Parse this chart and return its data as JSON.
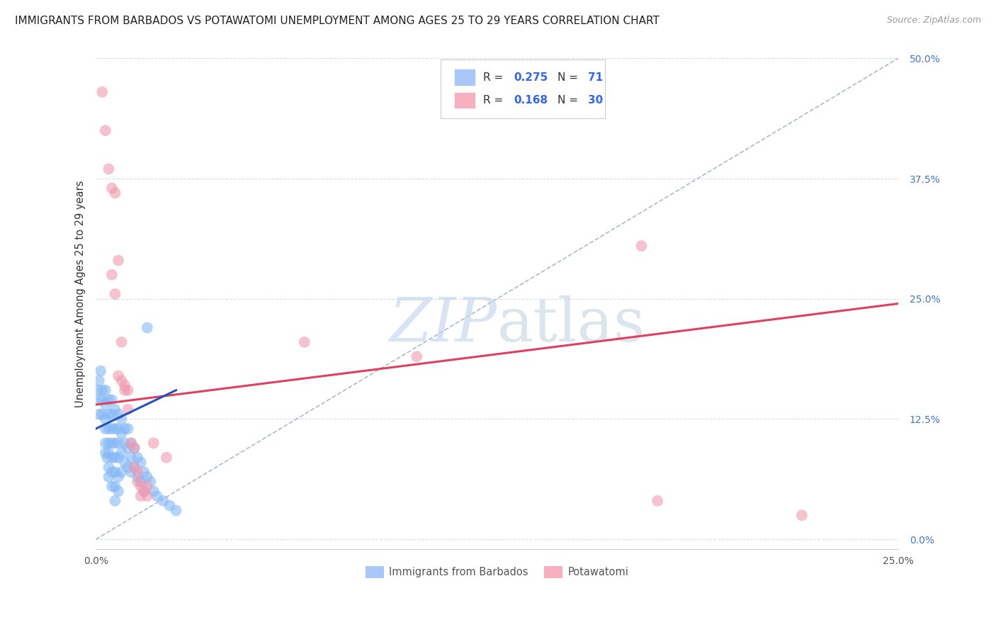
{
  "title": "IMMIGRANTS FROM BARBADOS VS POTAWATOMI UNEMPLOYMENT AMONG AGES 25 TO 29 YEARS CORRELATION CHART",
  "source": "Source: ZipAtlas.com",
  "ylabel": "Unemployment Among Ages 25 to 29 years",
  "ylabel_ticks": [
    "0.0%",
    "12.5%",
    "25.0%",
    "37.5%",
    "50.0%"
  ],
  "ylabel_vals": [
    0.0,
    0.125,
    0.25,
    0.375,
    0.5
  ],
  "xtick_vals": [
    0.0,
    0.05,
    0.1,
    0.15,
    0.2,
    0.25
  ],
  "xtick_labels": [
    "0.0%",
    "",
    "",
    "",
    "",
    "25.0%"
  ],
  "xlim": [
    0.0,
    0.25
  ],
  "ylim": [
    -0.01,
    0.52
  ],
  "blue_color": "#85b8f5",
  "pink_color": "#f09aaf",
  "blue_line_color": "#2255bb",
  "pink_line_color": "#e04060",
  "dash_line_color": "#aabbcc",
  "grid_color": "#d5dde8",
  "bg_color": "#ffffff",
  "title_fontsize": 11,
  "source_fontsize": 9,
  "tick_fontsize": 10,
  "label_fontsize": 10.5,
  "blue_scatter": [
    [
      0.0005,
      0.155
    ],
    [
      0.001,
      0.165
    ],
    [
      0.001,
      0.145
    ],
    [
      0.001,
      0.13
    ],
    [
      0.0015,
      0.175
    ],
    [
      0.002,
      0.155
    ],
    [
      0.002,
      0.145
    ],
    [
      0.002,
      0.13
    ],
    [
      0.003,
      0.155
    ],
    [
      0.003,
      0.14
    ],
    [
      0.003,
      0.125
    ],
    [
      0.003,
      0.115
    ],
    [
      0.003,
      0.1
    ],
    [
      0.003,
      0.09
    ],
    [
      0.0035,
      0.085
    ],
    [
      0.004,
      0.145
    ],
    [
      0.004,
      0.13
    ],
    [
      0.004,
      0.115
    ],
    [
      0.004,
      0.1
    ],
    [
      0.004,
      0.09
    ],
    [
      0.004,
      0.075
    ],
    [
      0.004,
      0.065
    ],
    [
      0.005,
      0.145
    ],
    [
      0.005,
      0.13
    ],
    [
      0.005,
      0.115
    ],
    [
      0.005,
      0.1
    ],
    [
      0.005,
      0.085
    ],
    [
      0.005,
      0.07
    ],
    [
      0.005,
      0.055
    ],
    [
      0.006,
      0.135
    ],
    [
      0.006,
      0.115
    ],
    [
      0.006,
      0.1
    ],
    [
      0.006,
      0.085
    ],
    [
      0.006,
      0.07
    ],
    [
      0.006,
      0.055
    ],
    [
      0.006,
      0.04
    ],
    [
      0.007,
      0.13
    ],
    [
      0.007,
      0.115
    ],
    [
      0.007,
      0.1
    ],
    [
      0.007,
      0.085
    ],
    [
      0.007,
      0.065
    ],
    [
      0.007,
      0.05
    ],
    [
      0.008,
      0.125
    ],
    [
      0.008,
      0.11
    ],
    [
      0.008,
      0.09
    ],
    [
      0.008,
      0.07
    ],
    [
      0.009,
      0.115
    ],
    [
      0.009,
      0.1
    ],
    [
      0.009,
      0.08
    ],
    [
      0.01,
      0.115
    ],
    [
      0.01,
      0.095
    ],
    [
      0.01,
      0.075
    ],
    [
      0.011,
      0.1
    ],
    [
      0.011,
      0.085
    ],
    [
      0.011,
      0.07
    ],
    [
      0.012,
      0.095
    ],
    [
      0.012,
      0.075
    ],
    [
      0.013,
      0.085
    ],
    [
      0.013,
      0.065
    ],
    [
      0.014,
      0.08
    ],
    [
      0.014,
      0.06
    ],
    [
      0.015,
      0.07
    ],
    [
      0.015,
      0.05
    ],
    [
      0.016,
      0.065
    ],
    [
      0.016,
      0.22
    ],
    [
      0.017,
      0.06
    ],
    [
      0.018,
      0.05
    ],
    [
      0.019,
      0.045
    ],
    [
      0.021,
      0.04
    ],
    [
      0.023,
      0.035
    ],
    [
      0.025,
      0.03
    ]
  ],
  "pink_scatter": [
    [
      0.002,
      0.465
    ],
    [
      0.003,
      0.425
    ],
    [
      0.004,
      0.385
    ],
    [
      0.005,
      0.365
    ],
    [
      0.005,
      0.275
    ],
    [
      0.006,
      0.36
    ],
    [
      0.006,
      0.255
    ],
    [
      0.007,
      0.29
    ],
    [
      0.007,
      0.17
    ],
    [
      0.008,
      0.205
    ],
    [
      0.008,
      0.165
    ],
    [
      0.009,
      0.16
    ],
    [
      0.009,
      0.155
    ],
    [
      0.01,
      0.155
    ],
    [
      0.01,
      0.135
    ],
    [
      0.011,
      0.1
    ],
    [
      0.012,
      0.095
    ],
    [
      0.012,
      0.075
    ],
    [
      0.013,
      0.07
    ],
    [
      0.013,
      0.06
    ],
    [
      0.014,
      0.055
    ],
    [
      0.014,
      0.045
    ],
    [
      0.015,
      0.05
    ],
    [
      0.016,
      0.055
    ],
    [
      0.016,
      0.045
    ],
    [
      0.018,
      0.1
    ],
    [
      0.022,
      0.085
    ],
    [
      0.065,
      0.205
    ],
    [
      0.1,
      0.19
    ],
    [
      0.175,
      0.04
    ],
    [
      0.22,
      0.025
    ],
    [
      0.17,
      0.305
    ]
  ],
  "blue_line": [
    [
      0.0,
      0.115
    ],
    [
      0.025,
      0.155
    ]
  ],
  "pink_line": [
    [
      0.0,
      0.14
    ],
    [
      0.25,
      0.245
    ]
  ],
  "dash_line": [
    [
      0.0,
      0.0
    ],
    [
      0.25,
      0.5
    ]
  ]
}
